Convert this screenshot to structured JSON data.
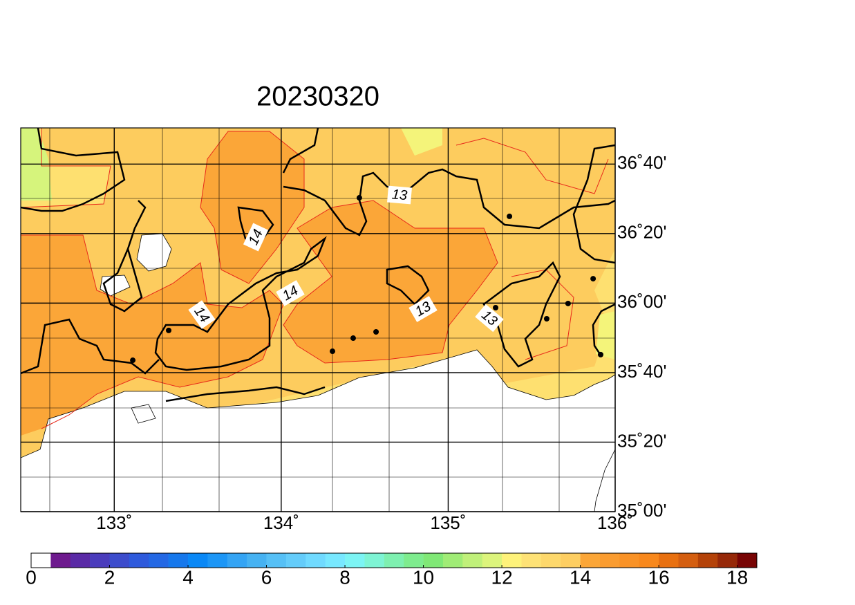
{
  "title": "20230320",
  "map": {
    "xlim": [
      132.44,
      136
    ],
    "ylim": [
      35,
      36.84
    ],
    "lon_ticks": [
      {
        "value": 133,
        "label": "133˚"
      },
      {
        "value": 134,
        "label": "134˚"
      },
      {
        "value": 135,
        "label": "135˚"
      },
      {
        "value": 136,
        "label": "136˚"
      }
    ],
    "lat_ticks": [
      {
        "value": 35,
        "label": "35˚00'"
      },
      {
        "value": 35.3333,
        "label": "35˚20'"
      },
      {
        "value": 35.6667,
        "label": "35˚40'"
      },
      {
        "value": 36,
        "label": "36˚00'"
      },
      {
        "value": 36.3333,
        "label": "36˚20'"
      },
      {
        "value": 36.6667,
        "label": "36˚40'"
      }
    ],
    "contour_labels": [
      "13",
      "14",
      "14",
      "14",
      "13",
      "13"
    ],
    "stations": [
      {
        "lon": 134.468,
        "lat": 36.505
      },
      {
        "lon": 135.367,
        "lat": 36.416
      },
      {
        "lon": 135.868,
        "lat": 36.117
      },
      {
        "lon": 135.718,
        "lat": 35.998
      },
      {
        "lon": 135.284,
        "lat": 35.978
      },
      {
        "lon": 135.59,
        "lat": 35.925
      },
      {
        "lon": 134.568,
        "lat": 35.862
      },
      {
        "lon": 134.431,
        "lat": 35.832
      },
      {
        "lon": 134.307,
        "lat": 35.769
      },
      {
        "lon": 133.326,
        "lat": 35.869
      },
      {
        "lon": 133.111,
        "lat": 35.726
      },
      {
        "lon": 135.913,
        "lat": 35.753
      }
    ]
  },
  "colorbar": {
    "lim": [
      0,
      18.5
    ],
    "ticks": [
      0,
      2,
      4,
      6,
      8,
      10,
      12,
      14,
      16,
      18
    ],
    "colors": [
      "#ffffff",
      "#6e1a8e",
      "#5a2aa6",
      "#4a3cbc",
      "#3c4ccc",
      "#2e5adc",
      "#2468e4",
      "#1678ec",
      "#0a88f6",
      "#1c96f6",
      "#34a4f4",
      "#46b2f2",
      "#56c0f6",
      "#64ccfa",
      "#70daff",
      "#78e8ff",
      "#7cf4f4",
      "#7ef4d4",
      "#7ef0b0",
      "#7eec8e",
      "#80e876",
      "#a0ec76",
      "#c0f07a",
      "#dcf47c",
      "#fef27a",
      "#fee276",
      "#fdd86c",
      "#fdce62",
      "#fba638",
      "#fa9c30",
      "#f99226",
      "#f8881c",
      "#e87010",
      "#d45e10",
      "#b44208",
      "#962808",
      "#780404"
    ]
  }
}
